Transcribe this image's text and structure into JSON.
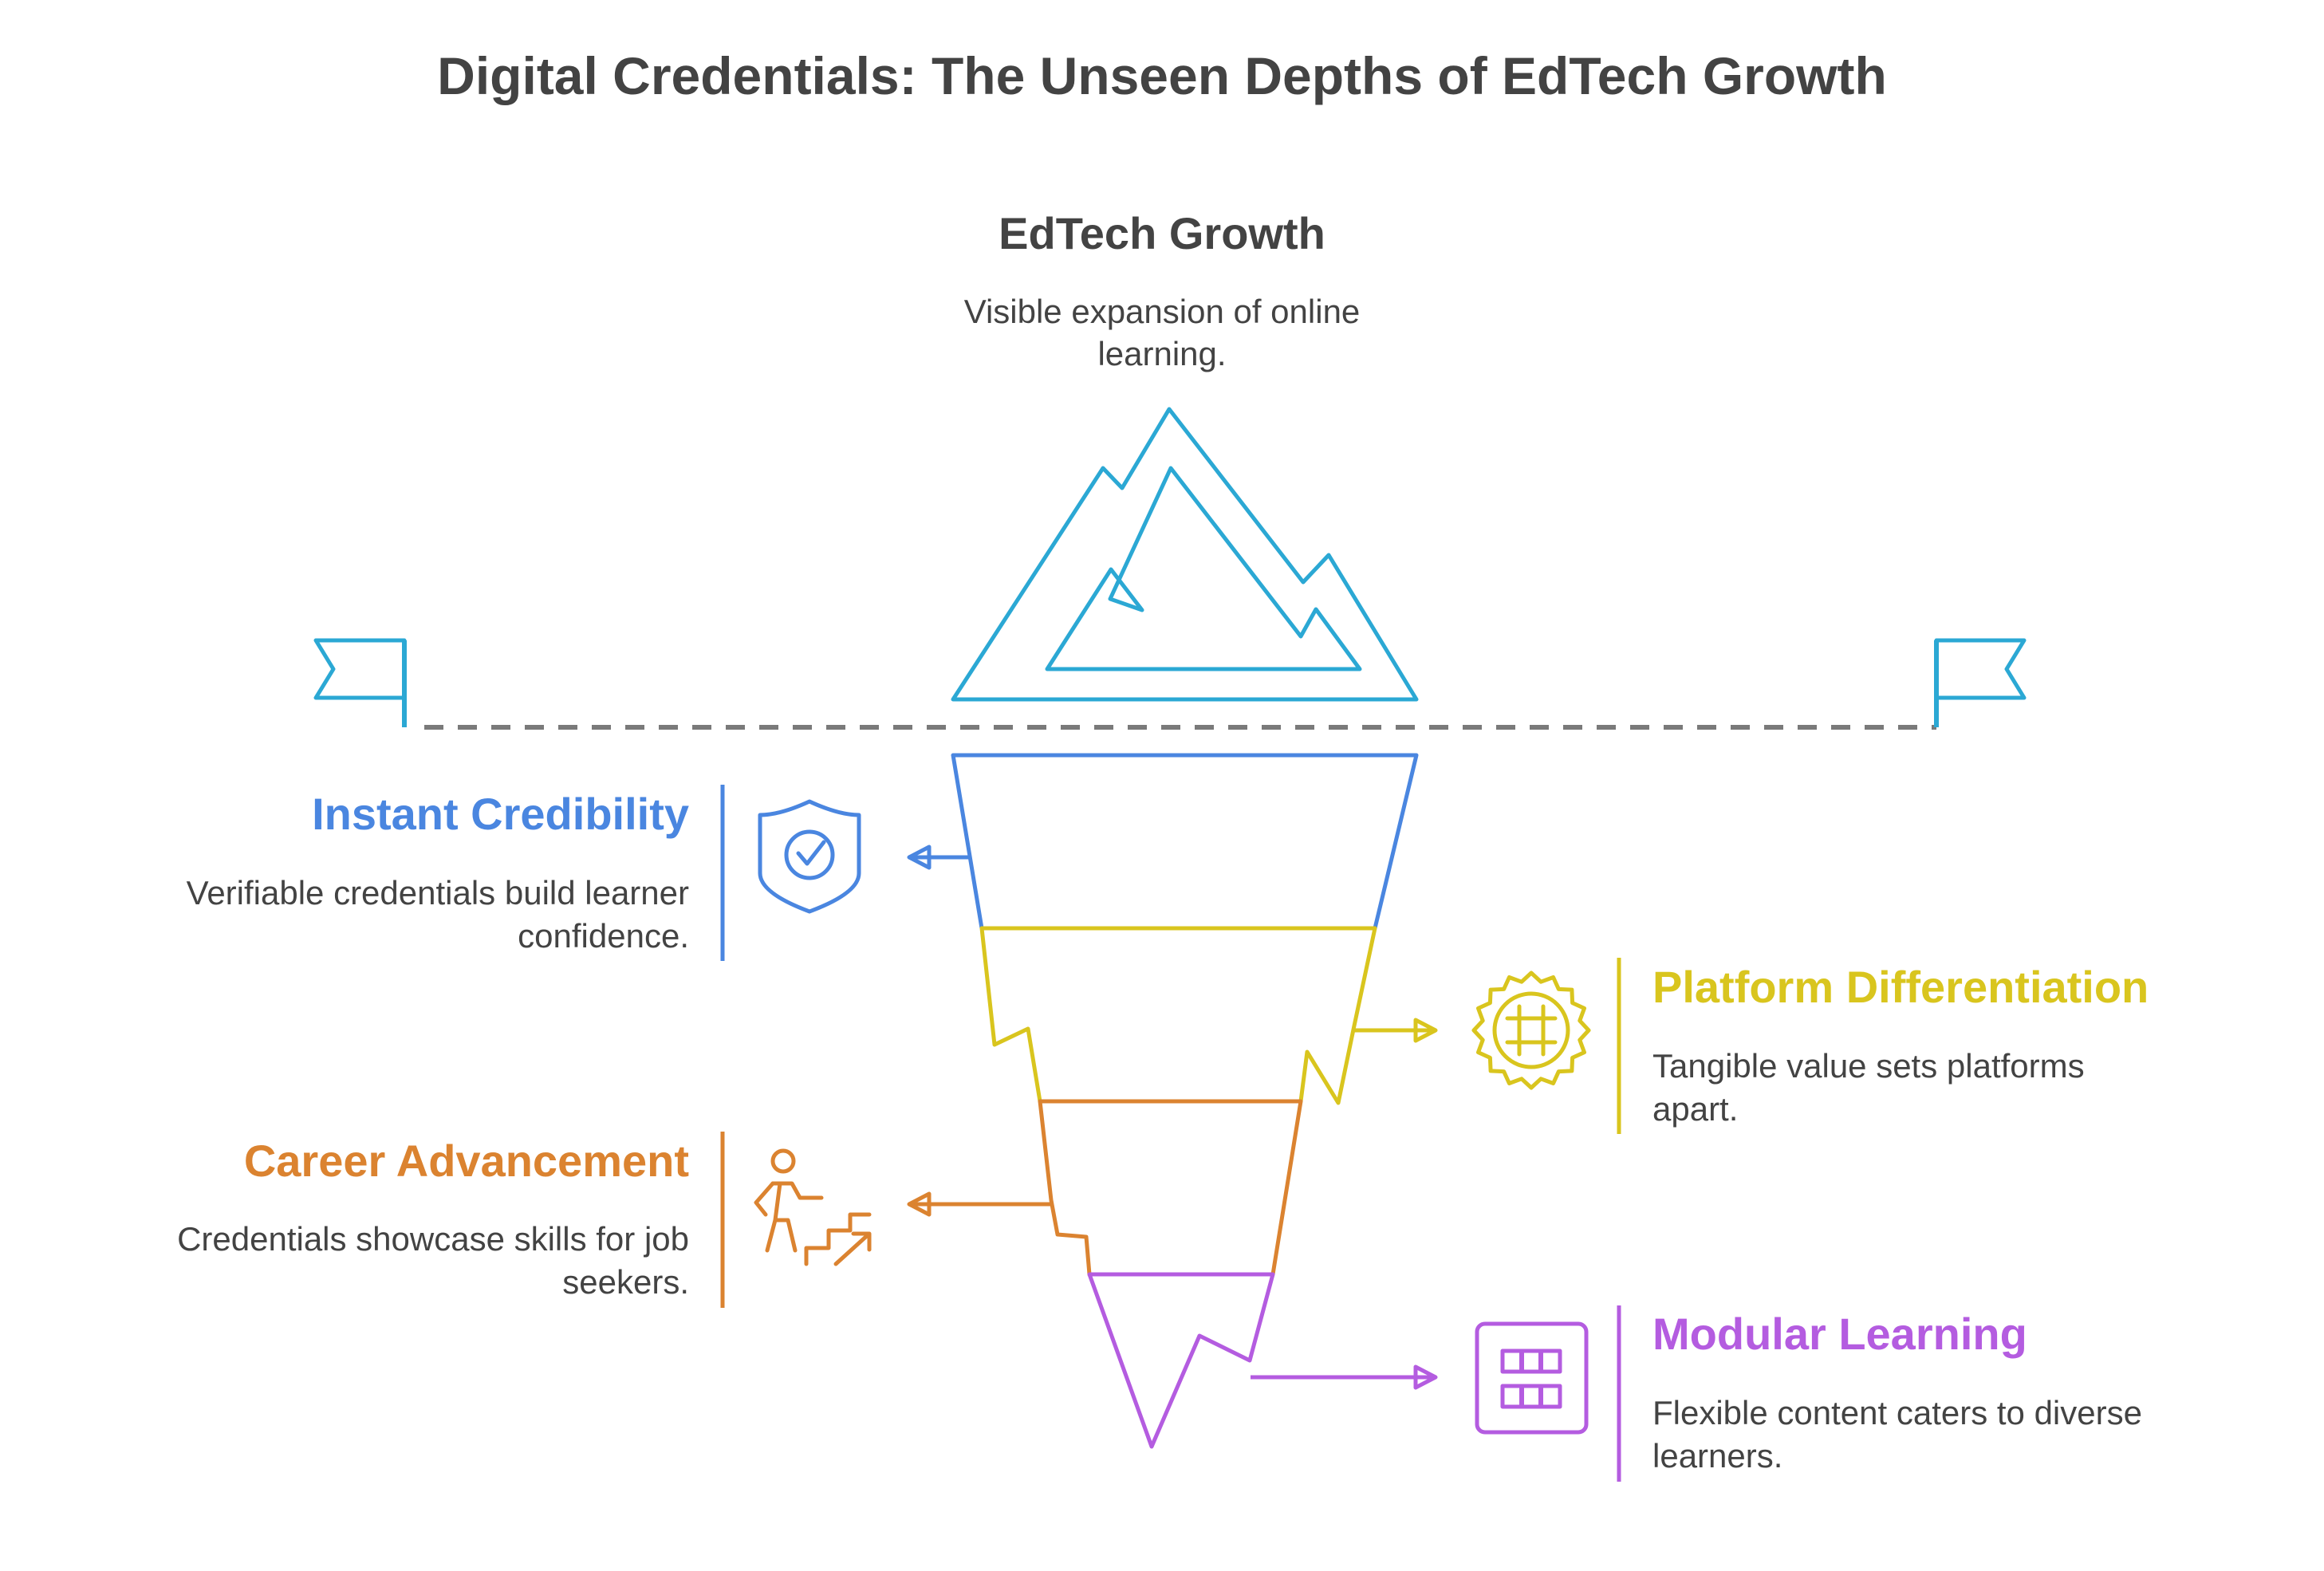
{
  "title": "Digital Credentials: The Unseen Depths of EdTech Growth",
  "tip": {
    "heading": "EdTech Growth",
    "desc_lines": [
      "Visible expansion of online",
      "learning."
    ],
    "color": "#2ba8d4"
  },
  "waterline_color": "#7a7a7a",
  "layers": [
    {
      "heading": "Instant Credibility",
      "desc_lines": [
        "Verifiable credentials build learner",
        "confidence."
      ],
      "color": "#4a86e0",
      "side": "left",
      "icon": "shield-check-icon"
    },
    {
      "heading": "Platform Differentiation",
      "desc_lines": [
        "Tangible value sets platforms",
        "apart."
      ],
      "color": "#d9c51e",
      "side": "right",
      "icon": "badge-hashtag-icon"
    },
    {
      "heading": "Career Advancement",
      "desc_lines": [
        "Credentials showcase skills for job",
        "seekers."
      ],
      "color": "#db8330",
      "side": "left",
      "icon": "person-climbing-stairs-icon"
    },
    {
      "heading": "Modular Learning",
      "desc_lines": [
        "Flexible content caters to diverse",
        "learners."
      ],
      "color": "#b45ce0",
      "side": "right",
      "icon": "module-grid-icon"
    }
  ]
}
